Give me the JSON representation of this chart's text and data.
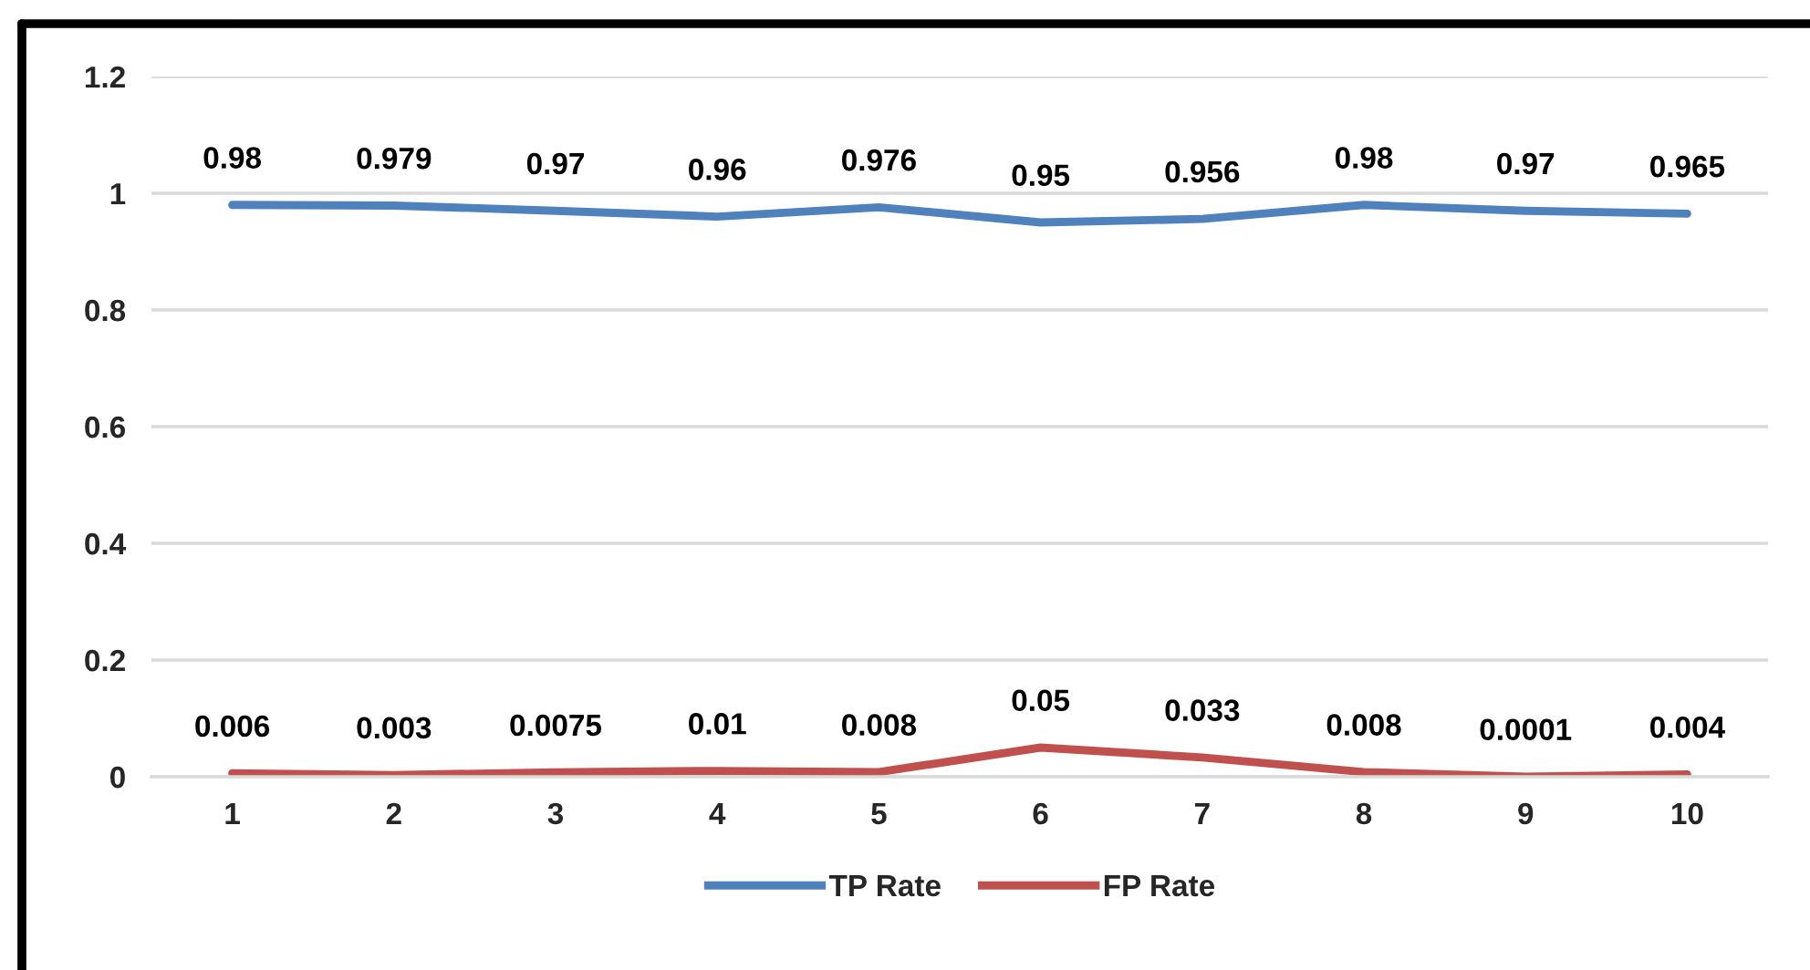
{
  "chart_data": {
    "type": "line",
    "categories": [
      "1",
      "2",
      "3",
      "4",
      "5",
      "6",
      "7",
      "8",
      "9",
      "10"
    ],
    "series": [
      {
        "name": "TP Rate",
        "color": "#4f81bd",
        "values": [
          0.98,
          0.979,
          0.97,
          0.96,
          0.976,
          0.95,
          0.956,
          0.98,
          0.97,
          0.965
        ]
      },
      {
        "name": "FP Rate",
        "color": "#c0504d",
        "values": [
          0.006,
          0.003,
          0.0075,
          0.01,
          0.008,
          0.05,
          0.033,
          0.008,
          0.0001,
          0.004
        ]
      }
    ],
    "ylim": [
      0,
      1.2
    ],
    "yticks": [
      0,
      0.2,
      0.4,
      0.6,
      0.8,
      1,
      1.2
    ],
    "grid": "y",
    "legend": "bottom",
    "data_labels": true,
    "marker": "none",
    "line_style": "solid"
  }
}
